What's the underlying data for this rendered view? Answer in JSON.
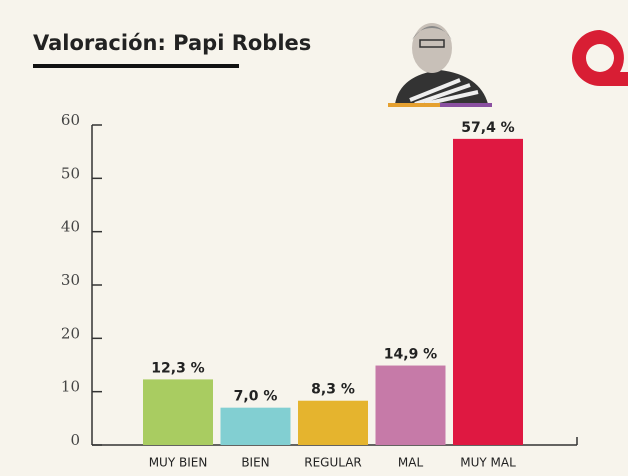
{
  "chart_data": {
    "type": "bar",
    "title": "Valoración: Papi Robles",
    "categories": [
      "MUY BIEN",
      "BIEN",
      "REGULAR",
      "MAL",
      "MUY MAL"
    ],
    "values": [
      12.3,
      7.0,
      8.3,
      14.9,
      57.4
    ],
    "value_labels": [
      "12,3 %",
      "7,0 %",
      "8,3 %",
      "14,9 %",
      "57,4 %"
    ],
    "colors": [
      "#a9cc61",
      "#82cfd2",
      "#e5b42e",
      "#c67aa8",
      "#df1841"
    ],
    "ylim": [
      0,
      60
    ],
    "yticks": [
      0,
      10,
      20,
      30,
      40,
      50,
      60
    ]
  }
}
